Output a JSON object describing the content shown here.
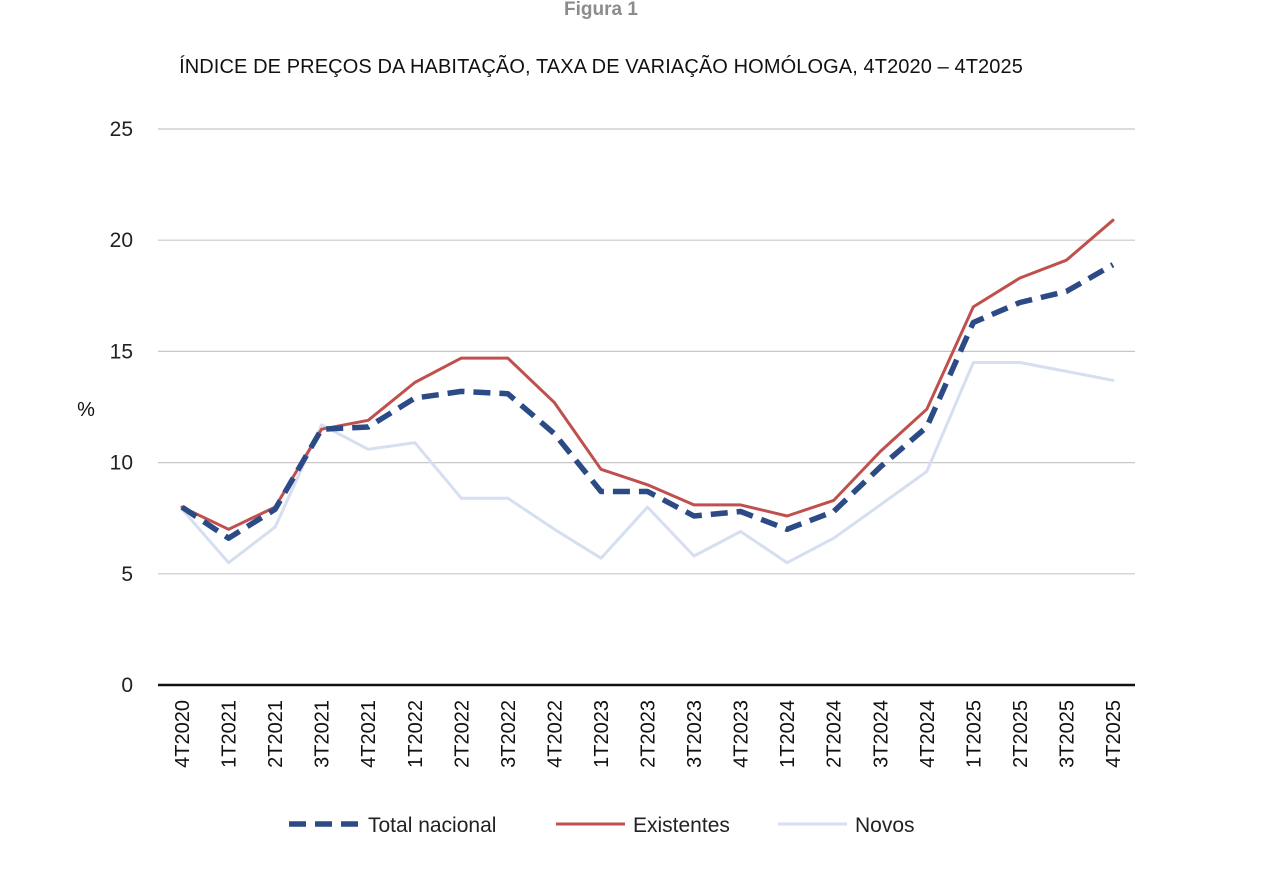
{
  "figure_label": "Figura 1",
  "chart_data": {
    "type": "line",
    "title": "ÍNDICE DE PREÇOS DA HABITAÇÃO, TAXA DE VARIAÇÃO HOMÓLOGA, 4T2020 – 4T2025",
    "xlabel": "",
    "ylabel": "%",
    "ylim": [
      0,
      25
    ],
    "yticks": [
      0,
      5,
      10,
      15,
      20,
      25
    ],
    "grid": true,
    "legend_position": "bottom",
    "categories": [
      "4T2020",
      "1T2021",
      "2T2021",
      "3T2021",
      "4T2021",
      "1T2022",
      "2T2022",
      "3T2022",
      "4T2022",
      "1T2023",
      "2T2023",
      "3T2023",
      "4T2023",
      "1T2024",
      "2T2024",
      "3T2024",
      "4T2024",
      "1T2025",
      "2T2025",
      "3T2025",
      "4T2025"
    ],
    "series": [
      {
        "name": "Total nacional",
        "color": "#2b4a86",
        "style": "dashed",
        "values": [
          8.0,
          6.6,
          7.9,
          11.5,
          11.6,
          12.9,
          13.2,
          13.1,
          11.3,
          8.7,
          8.7,
          7.6,
          7.8,
          7.0,
          7.8,
          9.8,
          11.6,
          16.3,
          17.2,
          17.7,
          18.9
        ]
      },
      {
        "name": "Existentes",
        "color": "#c0504d",
        "style": "solid",
        "values": [
          8.0,
          7.0,
          8.0,
          11.5,
          11.9,
          13.6,
          14.7,
          14.7,
          12.7,
          9.7,
          9.0,
          8.1,
          8.1,
          7.6,
          8.3,
          10.5,
          12.4,
          17.0,
          18.3,
          19.1,
          20.9
        ]
      },
      {
        "name": "Novos",
        "color": "#d6dff0",
        "style": "solid",
        "values": [
          7.9,
          5.5,
          7.1,
          11.7,
          10.6,
          10.9,
          8.4,
          8.4,
          7.0,
          5.7,
          8.0,
          5.8,
          6.9,
          5.5,
          6.6,
          8.1,
          9.6,
          14.5,
          14.5,
          14.1,
          13.7
        ]
      }
    ]
  }
}
